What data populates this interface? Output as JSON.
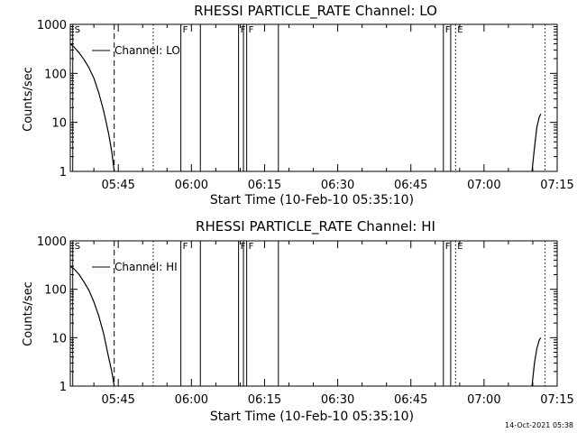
{
  "chart_data": [
    {
      "type": "line",
      "title": "RHESSI PARTICLE_RATE Channel: LO",
      "xlabel": "Start Time (10-Feb-10 05:35:10)",
      "ylabel": "Counts/sec",
      "yscale": "log",
      "ylim": [
        1,
        1000
      ],
      "xlim": [
        "05:35:10",
        "07:15:00"
      ],
      "grid": false,
      "legend": {
        "placement": "top-left",
        "entries": [
          "Channel: LO"
        ]
      },
      "x_ticks": [
        "05:45",
        "06:00",
        "06:15",
        "06:30",
        "06:45",
        "07:00",
        "07:15"
      ],
      "y_ticks": [
        "1",
        "10",
        "100",
        "1000"
      ],
      "series": [
        {
          "name": "Channel: LO",
          "points": [
            [
              "05:35:10",
              400
            ],
            [
              "05:36:00",
              340
            ],
            [
              "05:37:00",
              260
            ],
            [
              "05:38:00",
              190
            ],
            [
              "05:39:00",
              130
            ],
            [
              "05:40:00",
              80
            ],
            [
              "05:41:00",
              40
            ],
            [
              "05:42:00",
              17
            ],
            [
              "05:43:00",
              6
            ],
            [
              "05:43:40",
              2.5
            ],
            [
              "05:44:10",
              1
            ]
          ]
        },
        {
          "name": "Channel: LO",
          "points": [
            [
              "07:09:50",
              1
            ],
            [
              "07:10:20",
              3
            ],
            [
              "07:10:50",
              8
            ],
            [
              "07:11:20",
              13
            ],
            [
              "07:11:40",
              15
            ]
          ]
        }
      ],
      "markers": [
        {
          "time": "05:35:40",
          "style": "solid",
          "label": "S"
        },
        {
          "time": "05:44:10",
          "style": "dashed",
          "label": ""
        },
        {
          "time": "05:52:10",
          "style": "dotted",
          "label": ""
        },
        {
          "time": "05:57:50",
          "style": "solid",
          "label": "F"
        },
        {
          "time": "06:01:50",
          "style": "solid",
          "label": ""
        },
        {
          "time": "06:09:40",
          "style": "solid",
          "label": "F"
        },
        {
          "time": "06:10:40",
          "style": "solid",
          "label": ""
        },
        {
          "time": "06:11:20",
          "style": "solid",
          "label": "F"
        },
        {
          "time": "06:17:50",
          "style": "solid",
          "label": ""
        },
        {
          "time": "06:51:40",
          "style": "solid",
          "label": "F"
        },
        {
          "time": "06:53:10",
          "style": "solid",
          "label": ""
        },
        {
          "time": "06:54:10",
          "style": "dotted",
          "label": "E"
        },
        {
          "time": "07:12:30",
          "style": "dotted",
          "label": ""
        }
      ]
    },
    {
      "type": "line",
      "title": "RHESSI PARTICLE_RATE Channel: HI",
      "xlabel": "Start Time (10-Feb-10 05:35:10)",
      "ylabel": "Counts/sec",
      "yscale": "log",
      "ylim": [
        1,
        1000
      ],
      "xlim": [
        "05:35:10",
        "07:15:00"
      ],
      "grid": false,
      "legend": {
        "placement": "top-left",
        "entries": [
          "Channel: HI"
        ]
      },
      "x_ticks": [
        "05:45",
        "06:00",
        "06:15",
        "06:30",
        "06:45",
        "07:00",
        "07:15"
      ],
      "y_ticks": [
        "1",
        "10",
        "100",
        "1000"
      ],
      "series": [
        {
          "name": "Channel: HI",
          "points": [
            [
              "05:35:10",
              300
            ],
            [
              "05:36:00",
              260
            ],
            [
              "05:37:00",
              200
            ],
            [
              "05:38:00",
              140
            ],
            [
              "05:39:00",
              95
            ],
            [
              "05:40:00",
              55
            ],
            [
              "05:41:00",
              28
            ],
            [
              "05:42:00",
              12
            ],
            [
              "05:43:00",
              4
            ],
            [
              "05:43:40",
              2
            ],
            [
              "05:44:10",
              1
            ]
          ]
        },
        {
          "name": "Channel: HI",
          "points": [
            [
              "07:09:50",
              1
            ],
            [
              "07:10:20",
              3
            ],
            [
              "07:10:50",
              6
            ],
            [
              "07:11:20",
              9
            ],
            [
              "07:11:40",
              10
            ]
          ]
        }
      ],
      "markers": [
        {
          "time": "05:35:40",
          "style": "solid",
          "label": "S"
        },
        {
          "time": "05:44:10",
          "style": "dashed",
          "label": ""
        },
        {
          "time": "05:52:10",
          "style": "dotted",
          "label": ""
        },
        {
          "time": "05:57:50",
          "style": "solid",
          "label": "F"
        },
        {
          "time": "06:01:50",
          "style": "solid",
          "label": ""
        },
        {
          "time": "06:09:40",
          "style": "solid",
          "label": "F"
        },
        {
          "time": "06:10:40",
          "style": "solid",
          "label": ""
        },
        {
          "time": "06:11:20",
          "style": "solid",
          "label": "F"
        },
        {
          "time": "06:17:50",
          "style": "solid",
          "label": ""
        },
        {
          "time": "06:51:40",
          "style": "solid",
          "label": "F"
        },
        {
          "time": "06:53:10",
          "style": "solid",
          "label": ""
        },
        {
          "time": "06:54:10",
          "style": "dotted",
          "label": "E"
        },
        {
          "time": "07:12:30",
          "style": "dotted",
          "label": ""
        }
      ]
    }
  ],
  "footer": {
    "timestamp": "14-Oct-2021 05:38"
  }
}
